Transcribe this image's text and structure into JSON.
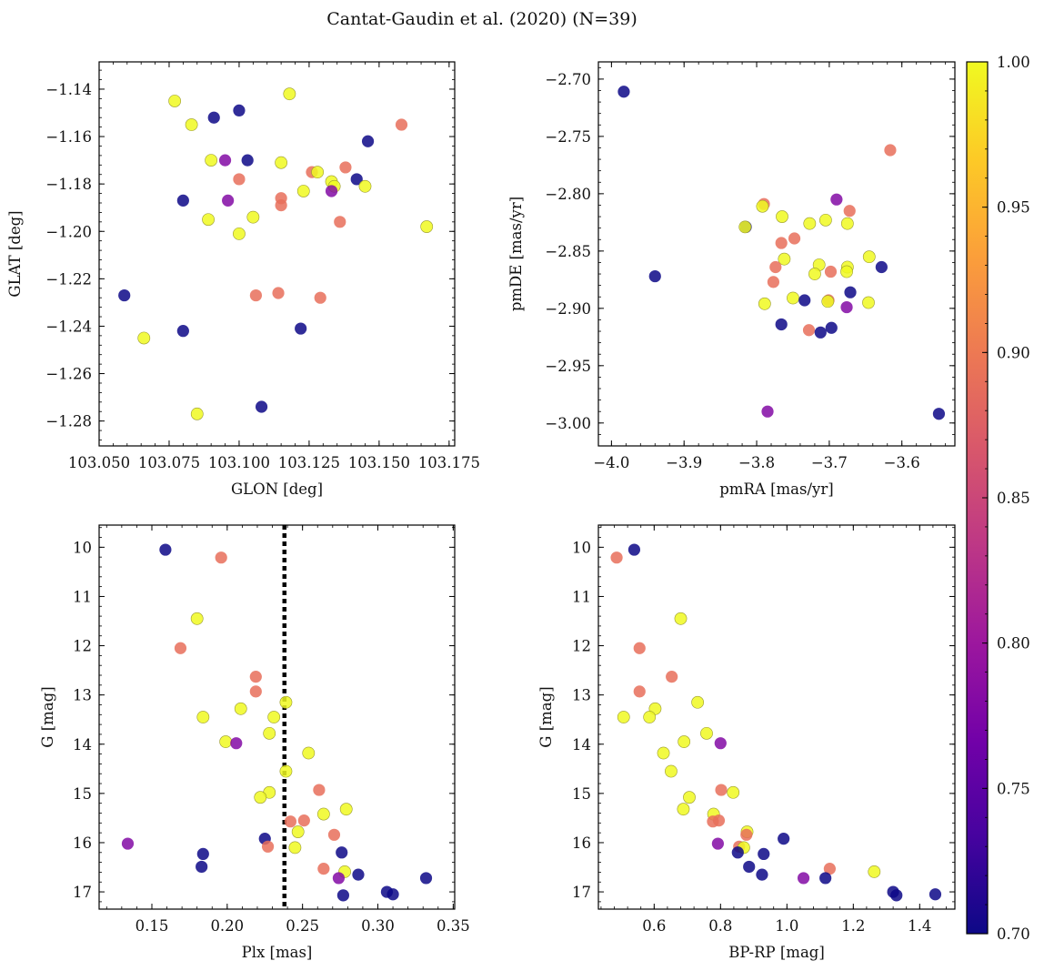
{
  "figure": {
    "title": "Cantat-Gaudin et al. (2020) (N=39)"
  },
  "colors": {
    "cmap": [
      "#0d0887",
      "#46039f",
      "#7201a8",
      "#9c179e",
      "#bd3786",
      "#d8576b",
      "#ed7953",
      "#fb9f3a",
      "#fdca26",
      "#f0f921"
    ]
  },
  "chart_data": [
    {
      "type": "scatter",
      "id": "glon_glat",
      "xlabel": "GLON [deg]",
      "ylabel": "GLAT [deg]",
      "xlim": [
        103.05,
        103.177
      ],
      "ylim": [
        -1.2905,
        -1.1285
      ],
      "xticks": [
        103.05,
        103.075,
        103.1,
        103.125,
        103.15,
        103.175
      ],
      "xtick_labels": [
        "103.050",
        "103.075",
        "103.100",
        "103.125",
        "103.150",
        "103.175"
      ],
      "yticks": [
        -1.14,
        -1.16,
        -1.18,
        -1.2,
        -1.22,
        -1.24,
        -1.26,
        -1.28
      ],
      "ytick_labels": [
        "−1.14",
        "−1.16",
        "−1.18",
        "−1.20",
        "−1.22",
        "−1.24",
        "−1.26",
        "−1.28"
      ],
      "points": [
        {
          "x": 103.077,
          "y": -1.145,
          "c": 1.0
        },
        {
          "x": 103.118,
          "y": -1.142,
          "c": 1.0
        },
        {
          "x": 103.083,
          "y": -1.155,
          "c": 1.0
        },
        {
          "x": 103.091,
          "y": -1.152,
          "c": 0.7
        },
        {
          "x": 103.1,
          "y": -1.149,
          "c": 0.7
        },
        {
          "x": 103.158,
          "y": -1.155,
          "c": 0.89
        },
        {
          "x": 103.146,
          "y": -1.162,
          "c": 0.7
        },
        {
          "x": 103.09,
          "y": -1.17,
          "c": 1.0
        },
        {
          "x": 103.095,
          "y": -1.17,
          "c": 0.78
        },
        {
          "x": 103.103,
          "y": -1.17,
          "c": 0.7
        },
        {
          "x": 103.115,
          "y": -1.171,
          "c": 1.0
        },
        {
          "x": 103.138,
          "y": -1.173,
          "c": 0.89
        },
        {
          "x": 103.126,
          "y": -1.175,
          "c": 0.89
        },
        {
          "x": 103.128,
          "y": -1.175,
          "c": 1.0
        },
        {
          "x": 103.1,
          "y": -1.178,
          "c": 0.89
        },
        {
          "x": 103.142,
          "y": -1.178,
          "c": 0.7
        },
        {
          "x": 103.133,
          "y": -1.179,
          "c": 1.0
        },
        {
          "x": 103.134,
          "y": -1.181,
          "c": 1.0
        },
        {
          "x": 103.145,
          "y": -1.181,
          "c": 1.0
        },
        {
          "x": 103.133,
          "y": -1.183,
          "c": 0.78
        },
        {
          "x": 103.123,
          "y": -1.183,
          "c": 1.0
        },
        {
          "x": 103.115,
          "y": -1.186,
          "c": 0.89
        },
        {
          "x": 103.08,
          "y": -1.187,
          "c": 0.7
        },
        {
          "x": 103.096,
          "y": -1.187,
          "c": 0.78
        },
        {
          "x": 103.115,
          "y": -1.189,
          "c": 0.89
        },
        {
          "x": 103.089,
          "y": -1.195,
          "c": 1.0
        },
        {
          "x": 103.105,
          "y": -1.194,
          "c": 1.0
        },
        {
          "x": 103.136,
          "y": -1.196,
          "c": 0.89
        },
        {
          "x": 103.167,
          "y": -1.198,
          "c": 1.0
        },
        {
          "x": 103.1,
          "y": -1.201,
          "c": 1.0
        },
        {
          "x": 103.059,
          "y": -1.227,
          "c": 0.7
        },
        {
          "x": 103.106,
          "y": -1.227,
          "c": 0.89
        },
        {
          "x": 103.114,
          "y": -1.226,
          "c": 0.89
        },
        {
          "x": 103.129,
          "y": -1.228,
          "c": 0.89
        },
        {
          "x": 103.122,
          "y": -1.241,
          "c": 0.7
        },
        {
          "x": 103.08,
          "y": -1.242,
          "c": 0.7
        },
        {
          "x": 103.066,
          "y": -1.245,
          "c": 1.0
        },
        {
          "x": 103.108,
          "y": -1.274,
          "c": 0.7
        },
        {
          "x": 103.085,
          "y": -1.277,
          "c": 1.0
        }
      ]
    },
    {
      "type": "scatter",
      "id": "pm",
      "xlabel": "pmRA [mas/yr]",
      "ylabel": "pmDE [mas/yr]",
      "xlim": [
        -4.018,
        -3.527
      ],
      "ylim": [
        -3.02,
        -2.685
      ],
      "xticks": [
        -4.0,
        -3.9,
        -3.8,
        -3.7,
        -3.6
      ],
      "xtick_labels": [
        "−4.0",
        "−3.9",
        "−3.8",
        "−3.7",
        "−3.6"
      ],
      "yticks": [
        -2.7,
        -2.75,
        -2.8,
        -2.85,
        -2.9,
        -2.95,
        -3.0
      ],
      "ytick_labels": [
        "−2.70",
        "−2.75",
        "−2.80",
        "−2.85",
        "−2.90",
        "−2.95",
        "−3.00"
      ],
      "points": [
        {
          "x": -3.983,
          "y": -2.711,
          "c": 0.7
        },
        {
          "x": -3.616,
          "y": -2.762,
          "c": 0.89
        },
        {
          "x": -3.79,
          "y": -2.809,
          "c": 0.89
        },
        {
          "x": -3.792,
          "y": -2.811,
          "c": 1.0
        },
        {
          "x": -3.69,
          "y": -2.805,
          "c": 0.78
        },
        {
          "x": -3.672,
          "y": -2.815,
          "c": 0.89
        },
        {
          "x": -3.815,
          "y": -2.829,
          "c": 0.7
        },
        {
          "x": -3.816,
          "y": -2.829,
          "c": 1.0
        },
        {
          "x": -3.765,
          "y": -2.82,
          "c": 1.0
        },
        {
          "x": -3.727,
          "y": -2.826,
          "c": 1.0
        },
        {
          "x": -3.705,
          "y": -2.823,
          "c": 1.0
        },
        {
          "x": -3.675,
          "y": -2.826,
          "c": 1.0
        },
        {
          "x": -3.748,
          "y": -2.839,
          "c": 0.89
        },
        {
          "x": -3.766,
          "y": -2.843,
          "c": 0.89
        },
        {
          "x": -3.645,
          "y": -2.855,
          "c": 1.0
        },
        {
          "x": -3.762,
          "y": -2.857,
          "c": 1.0
        },
        {
          "x": -3.628,
          "y": -2.864,
          "c": 0.7
        },
        {
          "x": -3.774,
          "y": -2.864,
          "c": 0.89
        },
        {
          "x": -3.714,
          "y": -2.862,
          "c": 1.0
        },
        {
          "x": -3.675,
          "y": -2.864,
          "c": 1.0
        },
        {
          "x": -3.698,
          "y": -2.868,
          "c": 0.89
        },
        {
          "x": -3.676,
          "y": -2.868,
          "c": 1.0
        },
        {
          "x": -3.72,
          "y": -2.87,
          "c": 1.0
        },
        {
          "x": -3.94,
          "y": -2.872,
          "c": 0.7
        },
        {
          "x": -3.777,
          "y": -2.877,
          "c": 0.89
        },
        {
          "x": -3.671,
          "y": -2.886,
          "c": 0.7
        },
        {
          "x": -3.75,
          "y": -2.891,
          "c": 1.0
        },
        {
          "x": -3.734,
          "y": -2.893,
          "c": 0.7
        },
        {
          "x": -3.701,
          "y": -2.893,
          "c": 0.89
        },
        {
          "x": -3.702,
          "y": -2.894,
          "c": 1.0
        },
        {
          "x": -3.646,
          "y": -2.895,
          "c": 1.0
        },
        {
          "x": -3.789,
          "y": -2.896,
          "c": 1.0
        },
        {
          "x": -3.676,
          "y": -2.899,
          "c": 0.78
        },
        {
          "x": -3.766,
          "y": -2.914,
          "c": 0.7
        },
        {
          "x": -3.697,
          "y": -2.917,
          "c": 0.7
        },
        {
          "x": -3.728,
          "y": -2.919,
          "c": 0.89
        },
        {
          "x": -3.712,
          "y": -2.921,
          "c": 0.7
        },
        {
          "x": -3.785,
          "y": -2.99,
          "c": 0.78
        },
        {
          "x": -3.549,
          "y": -2.992,
          "c": 0.7
        }
      ]
    },
    {
      "type": "scatter",
      "id": "plx_g",
      "xlabel": "Plx [mas]",
      "ylabel": "G [mag]",
      "xlim": [
        0.115,
        0.351
      ],
      "ylim": [
        17.35,
        9.55
      ],
      "xticks": [
        0.15,
        0.2,
        0.25,
        0.3,
        0.35
      ],
      "xtick_labels": [
        "0.15",
        "0.20",
        "0.25",
        "0.30",
        "0.35"
      ],
      "yticks": [
        10,
        11,
        12,
        13,
        14,
        15,
        16,
        17
      ],
      "ytick_labels": [
        "10",
        "11",
        "12",
        "13",
        "14",
        "15",
        "16",
        "17"
      ],
      "vline": 0.238,
      "points": [
        {
          "x": 0.159,
          "y": 10.05,
          "c": 0.7
        },
        {
          "x": 0.196,
          "y": 10.21,
          "c": 0.89
        },
        {
          "x": 0.18,
          "y": 11.45,
          "c": 1.0
        },
        {
          "x": 0.169,
          "y": 12.05,
          "c": 0.89
        },
        {
          "x": 0.219,
          "y": 12.63,
          "c": 0.89
        },
        {
          "x": 0.219,
          "y": 12.93,
          "c": 0.89
        },
        {
          "x": 0.239,
          "y": 13.15,
          "c": 1.0
        },
        {
          "x": 0.209,
          "y": 13.28,
          "c": 1.0
        },
        {
          "x": 0.184,
          "y": 13.45,
          "c": 1.0
        },
        {
          "x": 0.231,
          "y": 13.45,
          "c": 1.0
        },
        {
          "x": 0.228,
          "y": 13.78,
          "c": 1.0
        },
        {
          "x": 0.199,
          "y": 13.95,
          "c": 1.0
        },
        {
          "x": 0.206,
          "y": 13.98,
          "c": 0.78
        },
        {
          "x": 0.254,
          "y": 14.18,
          "c": 1.0
        },
        {
          "x": 0.239,
          "y": 14.55,
          "c": 1.0
        },
        {
          "x": 0.261,
          "y": 14.93,
          "c": 0.89
        },
        {
          "x": 0.228,
          "y": 14.98,
          "c": 1.0
        },
        {
          "x": 0.222,
          "y": 15.08,
          "c": 1.0
        },
        {
          "x": 0.279,
          "y": 15.32,
          "c": 1.0
        },
        {
          "x": 0.264,
          "y": 15.42,
          "c": 1.0
        },
        {
          "x": 0.242,
          "y": 15.57,
          "c": 0.89
        },
        {
          "x": 0.251,
          "y": 15.55,
          "c": 0.89
        },
        {
          "x": 0.247,
          "y": 15.78,
          "c": 1.0
        },
        {
          "x": 0.271,
          "y": 15.84,
          "c": 0.89
        },
        {
          "x": 0.225,
          "y": 15.92,
          "c": 0.7
        },
        {
          "x": 0.134,
          "y": 16.02,
          "c": 0.78
        },
        {
          "x": 0.227,
          "y": 16.08,
          "c": 0.89
        },
        {
          "x": 0.245,
          "y": 16.1,
          "c": 1.0
        },
        {
          "x": 0.184,
          "y": 16.23,
          "c": 0.7
        },
        {
          "x": 0.276,
          "y": 16.2,
          "c": 0.7
        },
        {
          "x": 0.183,
          "y": 16.49,
          "c": 0.7
        },
        {
          "x": 0.264,
          "y": 16.53,
          "c": 0.89
        },
        {
          "x": 0.278,
          "y": 16.59,
          "c": 1.0
        },
        {
          "x": 0.287,
          "y": 16.65,
          "c": 0.7
        },
        {
          "x": 0.274,
          "y": 16.72,
          "c": 0.78
        },
        {
          "x": 0.332,
          "y": 16.72,
          "c": 0.7
        },
        {
          "x": 0.306,
          "y": 17.0,
          "c": 0.7
        },
        {
          "x": 0.31,
          "y": 17.05,
          "c": 0.7
        },
        {
          "x": 0.277,
          "y": 17.07,
          "c": 0.7
        }
      ]
    },
    {
      "type": "scatter",
      "id": "cmd",
      "xlabel": "BP-RP [mag]",
      "ylabel": "G [mag]",
      "xlim": [
        0.432,
        1.506
      ],
      "ylim": [
        17.35,
        9.55
      ],
      "xticks": [
        0.6,
        0.8,
        1.0,
        1.2,
        1.4
      ],
      "xtick_labels": [
        "0.6",
        "0.8",
        "1.0",
        "1.2",
        "1.4"
      ],
      "yticks": [
        10,
        11,
        12,
        13,
        14,
        15,
        16,
        17
      ],
      "ytick_labels": [
        "10",
        "11",
        "12",
        "13",
        "14",
        "15",
        "16",
        "17"
      ],
      "points": [
        {
          "x": 0.487,
          "y": 10.21,
          "c": 0.89
        },
        {
          "x": 0.54,
          "y": 10.05,
          "c": 0.7
        },
        {
          "x": 0.68,
          "y": 11.45,
          "c": 1.0
        },
        {
          "x": 0.556,
          "y": 12.05,
          "c": 0.89
        },
        {
          "x": 0.653,
          "y": 12.63,
          "c": 0.89
        },
        {
          "x": 0.556,
          "y": 12.93,
          "c": 0.89
        },
        {
          "x": 0.731,
          "y": 13.15,
          "c": 1.0
        },
        {
          "x": 0.603,
          "y": 13.28,
          "c": 1.0
        },
        {
          "x": 0.508,
          "y": 13.45,
          "c": 1.0
        },
        {
          "x": 0.586,
          "y": 13.45,
          "c": 1.0
        },
        {
          "x": 0.758,
          "y": 13.78,
          "c": 1.0
        },
        {
          "x": 0.69,
          "y": 13.95,
          "c": 1.0
        },
        {
          "x": 0.8,
          "y": 13.98,
          "c": 0.78
        },
        {
          "x": 0.628,
          "y": 14.18,
          "c": 1.0
        },
        {
          "x": 0.651,
          "y": 14.55,
          "c": 1.0
        },
        {
          "x": 0.802,
          "y": 14.93,
          "c": 0.89
        },
        {
          "x": 0.838,
          "y": 14.98,
          "c": 1.0
        },
        {
          "x": 0.706,
          "y": 15.08,
          "c": 1.0
        },
        {
          "x": 0.688,
          "y": 15.32,
          "c": 1.0
        },
        {
          "x": 0.779,
          "y": 15.42,
          "c": 1.0
        },
        {
          "x": 0.777,
          "y": 15.57,
          "c": 0.89
        },
        {
          "x": 0.795,
          "y": 15.55,
          "c": 0.89
        },
        {
          "x": 0.88,
          "y": 15.78,
          "c": 1.0
        },
        {
          "x": 0.878,
          "y": 15.84,
          "c": 0.89
        },
        {
          "x": 0.99,
          "y": 15.92,
          "c": 0.7
        },
        {
          "x": 0.792,
          "y": 16.02,
          "c": 0.78
        },
        {
          "x": 0.856,
          "y": 16.08,
          "c": 0.89
        },
        {
          "x": 0.87,
          "y": 16.1,
          "c": 1.0
        },
        {
          "x": 0.93,
          "y": 16.23,
          "c": 0.7
        },
        {
          "x": 0.852,
          "y": 16.2,
          "c": 0.7
        },
        {
          "x": 0.886,
          "y": 16.49,
          "c": 0.7
        },
        {
          "x": 1.129,
          "y": 16.53,
          "c": 0.89
        },
        {
          "x": 1.263,
          "y": 16.59,
          "c": 1.0
        },
        {
          "x": 0.925,
          "y": 16.65,
          "c": 0.7
        },
        {
          "x": 1.05,
          "y": 16.72,
          "c": 0.78
        },
        {
          "x": 1.116,
          "y": 16.72,
          "c": 0.7
        },
        {
          "x": 1.32,
          "y": 17.0,
          "c": 0.7
        },
        {
          "x": 1.33,
          "y": 17.07,
          "c": 0.7
        },
        {
          "x": 1.447,
          "y": 17.05,
          "c": 0.7
        }
      ]
    }
  ],
  "colorbar": {
    "vmin": 0.7,
    "vmax": 1.0,
    "ticks": [
      0.7,
      0.75,
      0.8,
      0.85,
      0.9,
      0.95,
      1.0
    ],
    "tick_labels": [
      "0.70",
      "0.75",
      "0.80",
      "0.85",
      "0.90",
      "0.95",
      "1.00"
    ]
  }
}
